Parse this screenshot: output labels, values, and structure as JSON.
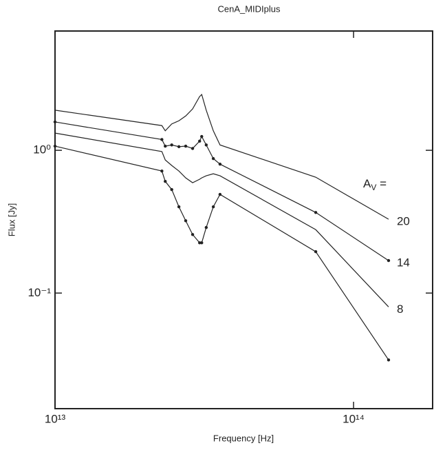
{
  "chart_data": {
    "type": "line",
    "title": "CenA_MIDIplus",
    "x_label": "Frequency [Hz]",
    "y_label": "Flux [Jy]",
    "x_scale": "log",
    "y_scale": "log",
    "xlim": [
      10000000000000.0,
      184000000000000.0
    ],
    "ylim": [
      0.0155,
      6.85
    ],
    "xticks": [
      {
        "value": 10000000000000.0,
        "label": "10¹³"
      },
      {
        "value": 100000000000000.0,
        "label": "10¹⁴"
      }
    ],
    "yticks": [
      {
        "value": 0.1,
        "label": "10⁻¹"
      },
      {
        "value": 1,
        "label": "10⁰"
      }
    ],
    "legend_title": {
      "base": "A",
      "sub": "V",
      "rest": " ="
    },
    "x": [
      10000000000000.0,
      22800000000000.0,
      23400000000000.0,
      24600000000000.0,
      26000000000000.0,
      27400000000000.0,
      28900000000000.0,
      30500000000000.0,
      31000000000000.0,
      32100000000000.0,
      33900000000000.0,
      35700000000000.0,
      74700000000000.0,
      131000000000000.0
    ],
    "series": [
      {
        "name": "20",
        "color": "#222222",
        "markers": false,
        "values": [
          1.91,
          1.49,
          1.37,
          1.53,
          1.61,
          1.74,
          1.95,
          2.38,
          2.46,
          1.91,
          1.37,
          1.09,
          0.648,
          0.329
        ]
      },
      {
        "name": "14",
        "color": "#222222",
        "markers": true,
        "values": [
          1.58,
          1.19,
          1.07,
          1.09,
          1.06,
          1.07,
          1.03,
          1.16,
          1.25,
          1.09,
          0.875,
          0.8,
          0.367,
          0.169
        ]
      },
      {
        "name": "8",
        "color": "#222222",
        "markers": false,
        "values": [
          1.32,
          0.98,
          0.856,
          0.783,
          0.716,
          0.641,
          0.593,
          0.627,
          0.641,
          0.663,
          0.685,
          0.663,
          0.278,
          0.08
        ]
      },
      {
        "color": "#222222",
        "markers": true,
        "values": [
          1.07,
          0.716,
          0.606,
          0.531,
          0.402,
          0.321,
          0.257,
          0.225,
          0.225,
          0.288,
          0.402,
          0.491,
          0.195,
          0.034
        ]
      }
    ]
  }
}
